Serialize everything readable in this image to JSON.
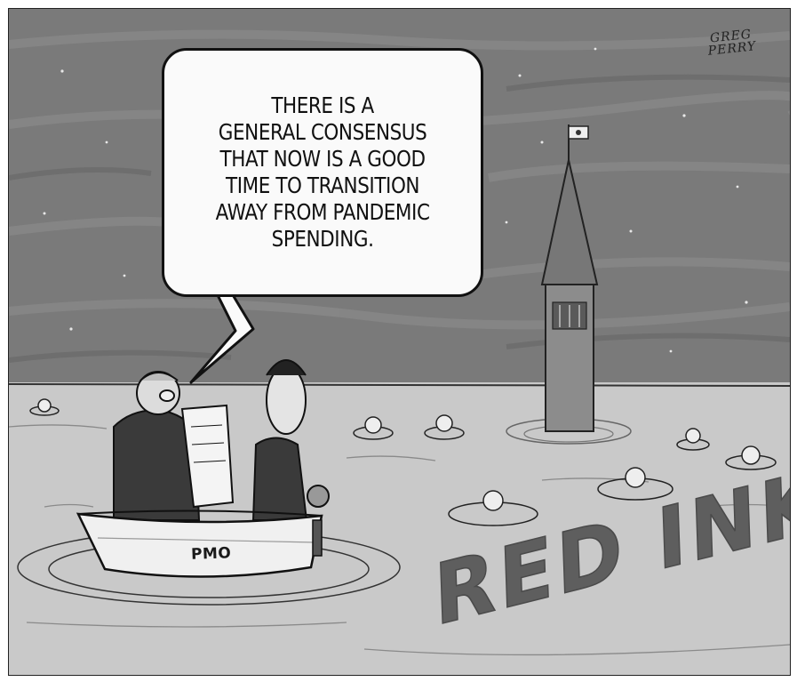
{
  "speech_bubble": {
    "lines": [
      "THERE IS A",
      "GENERAL CONSENSUS",
      "THAT NOW IS A GOOD",
      "TIME TO TRANSITION",
      "AWAY FROM PANDEMIC",
      "SPENDING."
    ]
  },
  "signature": {
    "line1": "GREG",
    "line2": "PERRY"
  },
  "boat_label": "PMO",
  "water_text": "RED INK",
  "colors": {
    "sky": "#7a7a7a",
    "water": "#c9c9c9",
    "red_ink_text": "#5e5e5e",
    "ink": "#111111"
  }
}
